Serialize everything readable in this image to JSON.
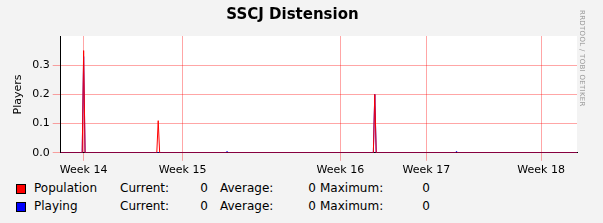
{
  "chart_data": {
    "type": "line",
    "title": "SSCJ Distension",
    "y_label": "Players",
    "annotations": [
      "RRDTOOL / TOBI OETIKER"
    ],
    "x": [
      0,
      1.5,
      1.6,
      1.7,
      6.7,
      6.8,
      6.9,
      11.5,
      11.6,
      11.7,
      21.8,
      21.9,
      22.0,
      27.5,
      27.6,
      27.7,
      36
    ],
    "xlim": [
      0,
      36
    ],
    "xticks": [
      {
        "value": 1.6,
        "label": "Week 14"
      },
      {
        "value": 8.5,
        "label": "Week 15"
      },
      {
        "value": 19.5,
        "label": "Week 16"
      },
      {
        "value": 25.5,
        "label": "Week 17"
      },
      {
        "value": 33.5,
        "label": "Week 18"
      }
    ],
    "ylim": [
      0,
      0.4
    ],
    "yticks": [
      {
        "value": 0,
        "label": "0.0"
      },
      0.1,
      0.2,
      0.3
    ],
    "grid": true,
    "legend": "bottom",
    "stat_labels": [
      "Current:",
      "Average:",
      "Maximum:"
    ],
    "series": [
      {
        "name": "Population",
        "color": "#ff0000",
        "values": [
          0,
          0,
          0.35,
          0,
          0,
          0.11,
          0,
          0,
          0,
          0,
          0,
          0.2,
          0,
          0,
          0,
          0,
          0
        ],
        "current": 0,
        "average": 0,
        "maximum": 0
      },
      {
        "name": "Playing",
        "color": "#0000ff",
        "values": [
          0,
          0,
          0.33,
          0,
          0,
          0,
          0,
          0,
          0.005,
          0,
          0,
          0.2,
          0,
          0,
          0.005,
          0,
          0
        ],
        "current": 0,
        "average": 0,
        "maximum": 0
      }
    ]
  }
}
